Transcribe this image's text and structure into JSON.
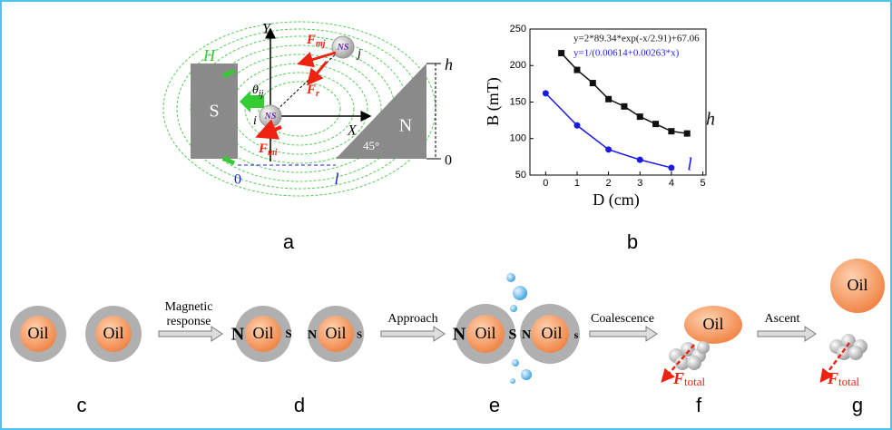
{
  "panel_a": {
    "label": "a",
    "axis_y": "Y",
    "axis_x": "X",
    "field": "H",
    "height": "h",
    "zero_right": "0",
    "zero_bottom": "0",
    "length": "l",
    "pole_left": "S",
    "pole_right": "N",
    "angle": "45°",
    "theta": {
      "main": "θ",
      "sub": "ij"
    },
    "f_mj": {
      "main": "F",
      "sub": "mj"
    },
    "f_r": {
      "main": "F",
      "sub": "r"
    },
    "f_mi": {
      "main": "F",
      "sub": "mi"
    },
    "particle_i": "i",
    "particle_j": "j",
    "particle_poles": [
      [
        "N",
        "S"
      ],
      [
        "N",
        "S"
      ]
    ]
  },
  "chart_data": {
    "type": "line",
    "label": "b",
    "xlabel": "D (cm)",
    "ylabel": "B (mT)",
    "xlim": [
      -0.5,
      5.1
    ],
    "xticks": [
      0,
      1,
      2,
      3,
      4,
      5
    ],
    "ylim": [
      50,
      250
    ],
    "yticks": [
      50,
      100,
      150,
      200,
      250
    ],
    "equations": [
      {
        "text": "y=2*89.34*exp(-x/2.91)+67.06",
        "color": "#111111"
      },
      {
        "text": "y=1/(0.00614+0.00263*x)",
        "color": "#1a1ae6"
      }
    ],
    "series": [
      {
        "name": "h",
        "color": "#111111",
        "marker": "square",
        "x": [
          0.5,
          1,
          1.5,
          2,
          2.5,
          3,
          3.5,
          4,
          4.5
        ],
        "values": [
          217,
          194,
          176,
          154,
          144,
          130,
          120,
          110,
          107
        ]
      },
      {
        "name": "l",
        "color": "#1a1ae6",
        "marker": "circle",
        "x": [
          0,
          1,
          2,
          3,
          4
        ],
        "values": [
          162,
          118,
          85,
          71,
          60
        ]
      }
    ]
  },
  "panel_c": {
    "label": "c",
    "droplets": [
      "Oil",
      "Oil"
    ]
  },
  "step_1": [
    "Magnetic",
    "response"
  ],
  "panel_d": {
    "label": "d",
    "droplets": [
      {
        "north": "N",
        "core": "Oil",
        "south": "S"
      },
      {
        "north": "N",
        "core": "Oil",
        "south": "S"
      }
    ]
  },
  "step_2": "Approach",
  "panel_e": {
    "label": "e",
    "droplets": [
      {
        "north": "N",
        "core": "Oil",
        "south": "S"
      },
      {
        "north": "N",
        "core": "Oil",
        "south": "s"
      }
    ]
  },
  "step_3": "Coalescence",
  "panel_f": {
    "label": "f",
    "droplet": "Oil",
    "force": {
      "main": "F",
      "sub": "total"
    }
  },
  "step_4": "Ascent",
  "panel_g": {
    "label": "g",
    "droplet": "Oil",
    "force": {
      "main": "F",
      "sub": "total"
    }
  }
}
